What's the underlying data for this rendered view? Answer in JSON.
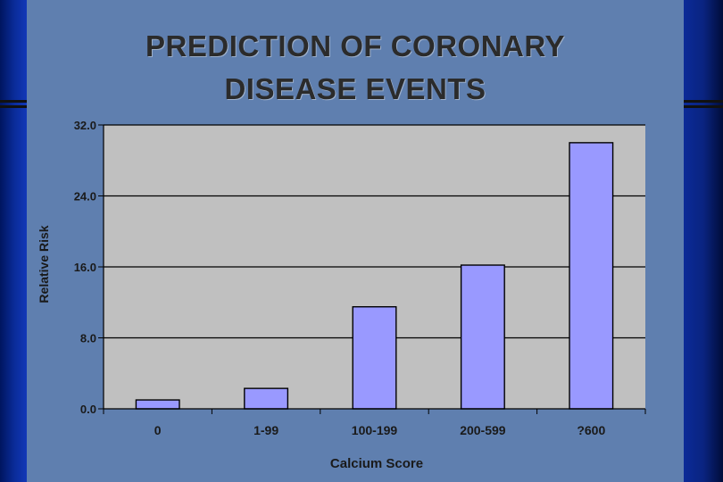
{
  "slide": {
    "title_line1": "PREDICTION OF CORONARY",
    "title_line2": "DISEASE EVENTS"
  },
  "colors": {
    "background_slide": "#5f7faf",
    "plot_area": "#c0c0c0",
    "bar_fill": "#9999ff",
    "gridline": "#000000"
  },
  "chart_data": {
    "type": "bar",
    "title": "PREDICTION OF CORONARY DISEASE EVENTS",
    "xlabel": "Calcium Score",
    "ylabel": "Relative Risk",
    "categories": [
      "0",
      "1-99",
      "100-199",
      "200-599",
      "?600"
    ],
    "values": [
      1.0,
      2.3,
      11.5,
      16.2,
      30.0
    ],
    "ylim": [
      0,
      32
    ],
    "yticks": [
      "0.0",
      "8.0",
      "16.0",
      "24.0",
      "32.0"
    ],
    "grid": true,
    "legend": "none"
  }
}
